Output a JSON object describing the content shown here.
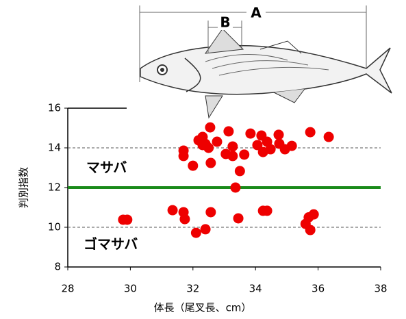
{
  "chart_data": {
    "type": "scatter",
    "xlabel": "体長（尾叉長、cm）",
    "ylabel": "判別指数",
    "x": [
      32.55,
      33.14,
      32.18,
      32.31,
      32.4,
      32.77,
      31.7,
      31.7,
      32.0,
      32.57,
      33.05,
      33.27,
      33.27,
      33.5,
      33.64,
      33.84,
      34.06,
      34.19,
      34.37,
      34.24,
      34.48,
      34.74,
      34.76,
      34.94,
      35.16,
      35.75,
      36.34,
      32.31,
      32.5,
      33.36,
      29.77,
      29.9,
      31.35,
      31.7,
      31.74,
      32.1,
      32.4,
      32.57,
      33.45,
      34.24,
      34.37,
      35.6,
      35.75,
      35.86,
      35.7
    ],
    "values": [
      15.03,
      14.83,
      14.38,
      14.55,
      14.2,
      14.31,
      13.86,
      13.59,
      13.1,
      13.24,
      13.69,
      14.07,
      13.59,
      12.83,
      13.66,
      14.72,
      14.14,
      14.62,
      14.31,
      13.79,
      13.93,
      14.66,
      14.21,
      13.93,
      14.1,
      14.79,
      14.55,
      14.14,
      14.0,
      12.0,
      10.38,
      10.38,
      10.86,
      10.76,
      10.41,
      9.72,
      9.9,
      10.76,
      10.45,
      10.83,
      10.83,
      10.17,
      9.86,
      10.65,
      10.5
    ],
    "color": "#ee0000",
    "xlim": [
      28,
      38
    ],
    "xticks": [
      28,
      30,
      32,
      34,
      36,
      38
    ],
    "ylim": [
      8,
      16
    ],
    "yticks": [
      8,
      10,
      12,
      14,
      16
    ],
    "grid_lines": [
      10,
      14
    ],
    "threshold": 12,
    "threshold_color": "#1a8a1a",
    "annotations": [
      "マサバ",
      "ゴマサバ"
    ],
    "figure_labels": [
      "A",
      "B"
    ]
  }
}
